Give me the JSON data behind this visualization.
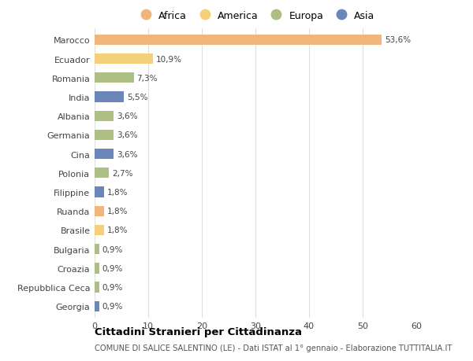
{
  "categories": [
    "Marocco",
    "Ecuador",
    "Romania",
    "India",
    "Albania",
    "Germania",
    "Cina",
    "Polonia",
    "Filippine",
    "Ruanda",
    "Brasile",
    "Bulgaria",
    "Croazia",
    "Repubblica Ceca",
    "Georgia"
  ],
  "values": [
    53.6,
    10.9,
    7.3,
    5.5,
    3.6,
    3.6,
    3.6,
    2.7,
    1.8,
    1.8,
    1.8,
    0.9,
    0.9,
    0.9,
    0.9
  ],
  "labels": [
    "53,6%",
    "10,9%",
    "7,3%",
    "5,5%",
    "3,6%",
    "3,6%",
    "3,6%",
    "2,7%",
    "1,8%",
    "1,8%",
    "1,8%",
    "0,9%",
    "0,9%",
    "0,9%",
    "0,9%"
  ],
  "colors": [
    "#F0B57A",
    "#F5D07A",
    "#ADBF85",
    "#6B87BA",
    "#ADBF85",
    "#ADBF85",
    "#6B87BA",
    "#ADBF85",
    "#6B87BA",
    "#F0B57A",
    "#F5D07A",
    "#ADBF85",
    "#ADBF85",
    "#ADBF85",
    "#6B87BA"
  ],
  "legend_labels": [
    "Africa",
    "America",
    "Europa",
    "Asia"
  ],
  "legend_colors": [
    "#F0B57A",
    "#F5D07A",
    "#ADBF85",
    "#6B87BA"
  ],
  "title": "Cittadini Stranieri per Cittadinanza",
  "subtitle": "COMUNE DI SALICE SALENTINO (LE) - Dati ISTAT al 1° gennaio - Elaborazione TUTTITALIA.IT",
  "xlim": [
    0,
    60
  ],
  "xticks": [
    0,
    10,
    20,
    30,
    40,
    50,
    60
  ],
  "background_color": "#ffffff",
  "grid_color": "#e0e0e0",
  "bar_height": 0.55
}
